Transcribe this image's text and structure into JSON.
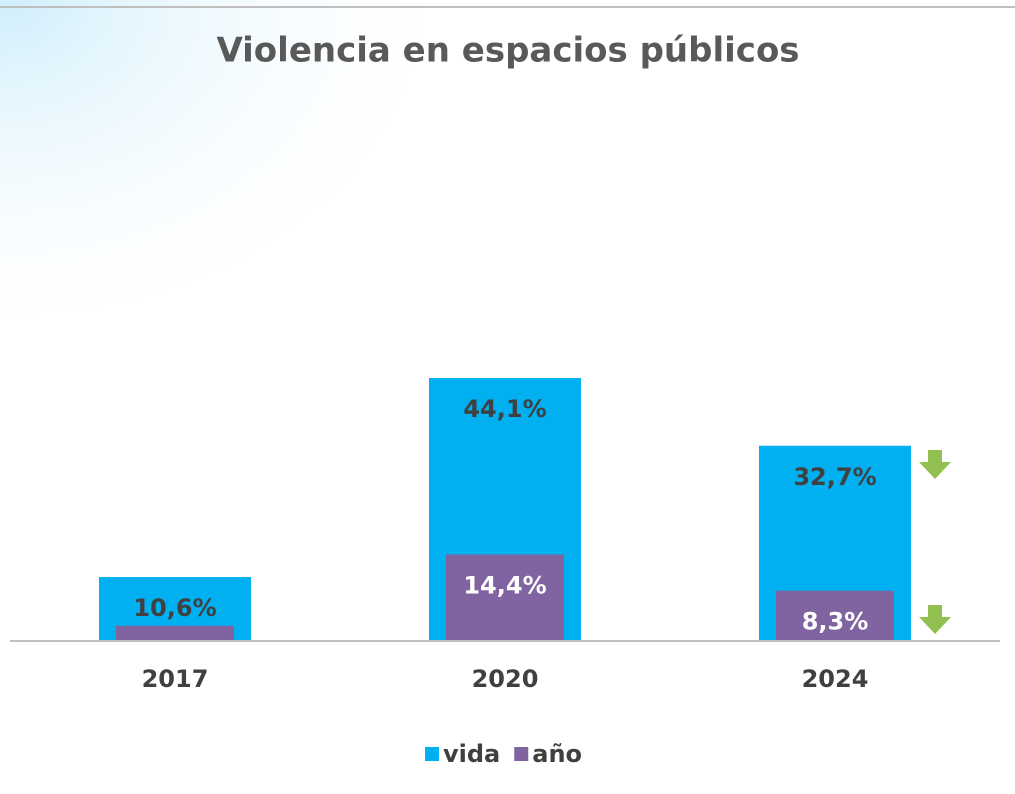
{
  "chart_data": {
    "type": "bar",
    "title": "Violencia en espacios públicos",
    "categories": [
      "2017",
      "2020",
      "2024"
    ],
    "series": [
      {
        "name": "vida",
        "color": "#00b0f0",
        "values": [
          10.6,
          44.1,
          32.7
        ],
        "value_labels": [
          "10,6%",
          "44,1%",
          "32,7%"
        ]
      },
      {
        "name": "año",
        "color": "#8064a2",
        "values": [
          2.4,
          14.4,
          8.3
        ],
        "value_labels": [
          null,
          "14,4%",
          "8,3%"
        ]
      }
    ],
    "ylim": [
      0,
      50
    ],
    "legend": "bottom"
  }
}
